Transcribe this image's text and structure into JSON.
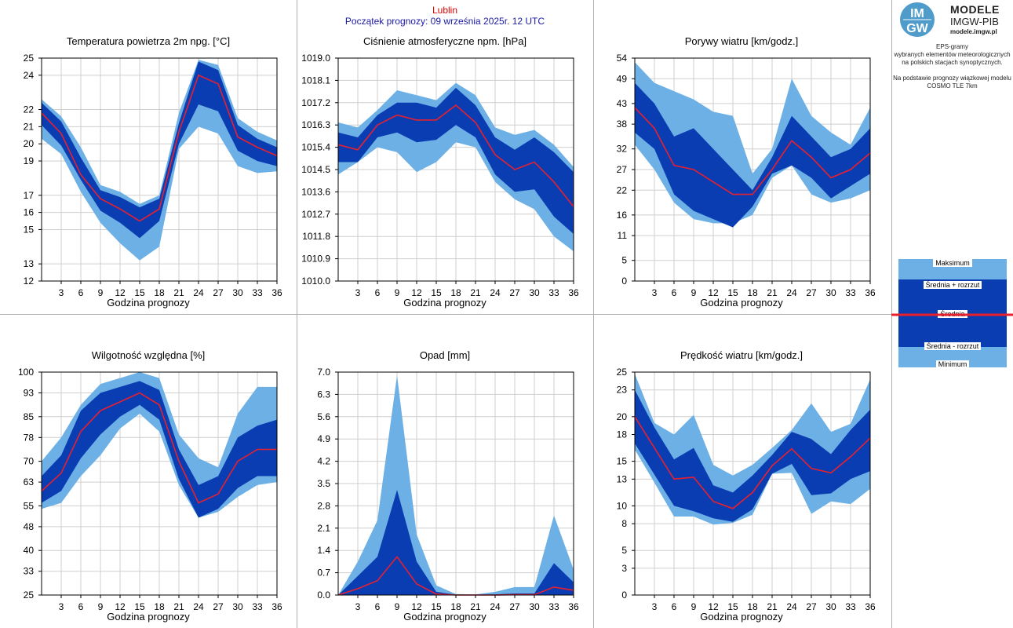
{
  "header": {
    "station": "Lublin",
    "forecast_start": "Początek prognozy: 09 września 2025r. 12 UTC"
  },
  "logo": {
    "mark_text_top": "IM",
    "mark_text_bottom": "GW",
    "line1": "MODELE",
    "line2": "IMGW-PIB",
    "line3": "modele.imgw.pl"
  },
  "info": {
    "line1": "EPS-gramy",
    "line2": "wybranych elementów meteorologicznych",
    "line3": "na polskich stacjach  synoptycznych.",
    "line4": "Na podstawie prognozy wiązkowej modelu",
    "line5": "COSMO TLE 7km"
  },
  "legend": {
    "max": "Maksimum",
    "mean_plus": "Średnia + rozrzut",
    "mean": "Średnia",
    "mean_minus": "Średnia - rozrzut",
    "min": "Minimum"
  },
  "colors": {
    "light_band": "#6cb0e6",
    "dark_band": "#0b3db2",
    "mean_line": "#e8202e",
    "grid": "#cfcfcf"
  },
  "chart_data": [
    {
      "type": "area",
      "title": "Temperatura powietrza 2m npg. [°C]",
      "xlabel": "Godzina prognozy",
      "x": [
        0,
        3,
        6,
        9,
        12,
        15,
        18,
        21,
        24,
        27,
        30,
        33,
        36
      ],
      "x_ticks": [
        3,
        6,
        9,
        12,
        15,
        18,
        21,
        24,
        27,
        30,
        33,
        36
      ],
      "ylim": [
        12,
        25
      ],
      "y_ticks": [
        12,
        13,
        15,
        16,
        17,
        19,
        20,
        21,
        22,
        24,
        25
      ],
      "y_tick_labels": [
        "12",
        "13",
        "15",
        "16",
        "17",
        "19",
        "20",
        "21",
        "22",
        "24",
        "25"
      ],
      "series": [
        {
          "name": "Maksimum",
          "values": [
            22.6,
            21.6,
            19.8,
            17.6,
            17.2,
            16.5,
            17.0,
            21.8,
            24.9,
            24.6,
            21.5,
            20.7,
            20.2
          ]
        },
        {
          "name": "Średnia + rozrzut",
          "values": [
            22.4,
            21.3,
            19.2,
            17.3,
            16.9,
            16.3,
            16.8,
            21.2,
            24.8,
            24.3,
            21.1,
            20.3,
            19.8
          ]
        },
        {
          "name": "Średnia",
          "values": [
            21.8,
            20.6,
            18.2,
            16.8,
            16.2,
            15.5,
            16.2,
            20.7,
            24.0,
            23.5,
            20.4,
            19.8,
            19.3
          ]
        },
        {
          "name": "Średnia - rozrzut",
          "values": [
            21.1,
            19.9,
            17.9,
            16.1,
            15.4,
            14.5,
            15.5,
            20.0,
            22.3,
            21.9,
            19.6,
            19.0,
            18.7
          ]
        },
        {
          "name": "Minimum",
          "values": [
            20.3,
            19.4,
            17.2,
            15.4,
            14.2,
            13.2,
            14.0,
            19.7,
            21.0,
            20.6,
            18.7,
            18.3,
            18.4
          ]
        }
      ]
    },
    {
      "type": "area",
      "title": "Ciśnienie atmosferyczne npm. [hPa]",
      "xlabel": "Godzina prognozy",
      "x": [
        0,
        3,
        6,
        9,
        12,
        15,
        18,
        21,
        24,
        27,
        30,
        33,
        36
      ],
      "x_ticks": [
        3,
        6,
        9,
        12,
        15,
        18,
        21,
        24,
        27,
        30,
        33,
        36
      ],
      "ylim": [
        1010.0,
        1019.0
      ],
      "y_ticks": [
        1010.0,
        1010.9,
        1011.8,
        1012.7,
        1013.6,
        1014.5,
        1015.4,
        1016.3,
        1017.2,
        1018.1,
        1019.0
      ],
      "y_tick_labels": [
        "1010.0",
        "1010.9",
        "1011.8",
        "1012.7",
        "1013.6",
        "1014.5",
        "1015.4",
        "1016.3",
        "1017.2",
        "1018.1",
        "1019.0"
      ],
      "series": [
        {
          "name": "Maksimum",
          "values": [
            1016.4,
            1016.2,
            1016.9,
            1017.7,
            1017.5,
            1017.3,
            1018.0,
            1017.5,
            1016.2,
            1015.9,
            1016.1,
            1015.5,
            1014.6
          ]
        },
        {
          "name": "Średnia + rozrzut",
          "values": [
            1016.0,
            1015.8,
            1016.7,
            1017.2,
            1017.2,
            1017.0,
            1017.8,
            1017.1,
            1015.8,
            1015.3,
            1015.8,
            1015.2,
            1014.4
          ]
        },
        {
          "name": "Średnia",
          "values": [
            1015.5,
            1015.3,
            1016.3,
            1016.7,
            1016.5,
            1016.5,
            1017.1,
            1016.4,
            1015.1,
            1014.5,
            1014.8,
            1014.0,
            1013.0
          ]
        },
        {
          "name": "Średnia - rozrzut",
          "values": [
            1014.8,
            1014.8,
            1015.8,
            1016.0,
            1015.6,
            1015.7,
            1016.3,
            1015.8,
            1014.3,
            1013.6,
            1013.7,
            1012.6,
            1011.9
          ]
        },
        {
          "name": "Minimum",
          "values": [
            1014.3,
            1014.8,
            1015.4,
            1015.2,
            1014.4,
            1014.8,
            1015.6,
            1015.4,
            1014.0,
            1013.3,
            1012.9,
            1011.8,
            1011.2
          ]
        }
      ]
    },
    {
      "type": "area",
      "title": "Porywy wiatru [km/godz.]",
      "xlabel": "Godzina prognozy",
      "x": [
        0,
        3,
        6,
        9,
        12,
        15,
        18,
        21,
        24,
        27,
        30,
        33,
        36
      ],
      "x_ticks": [
        3,
        6,
        9,
        12,
        15,
        18,
        21,
        24,
        27,
        30,
        33,
        36
      ],
      "ylim": [
        0,
        54
      ],
      "y_ticks": [
        0,
        5,
        11,
        16,
        22,
        27,
        32,
        38,
        43,
        49,
        54
      ],
      "y_tick_labels": [
        "0",
        "5",
        "11",
        "16",
        "22",
        "27",
        "32",
        "38",
        "43",
        "49",
        "54"
      ],
      "series": [
        {
          "name": "Maksimum",
          "values": [
            53,
            48,
            46,
            44,
            41,
            40,
            26,
            32,
            49,
            40,
            36,
            33,
            42
          ]
        },
        {
          "name": "Średnia + rozrzut",
          "values": [
            48,
            43,
            35,
            37,
            32,
            27,
            22,
            30,
            40,
            35,
            30,
            32,
            37
          ]
        },
        {
          "name": "Średnia",
          "values": [
            42,
            37,
            28,
            27,
            24,
            21,
            21,
            27,
            34,
            30,
            25,
            27,
            31
          ]
        },
        {
          "name": "Średnia - rozrzut",
          "values": [
            36,
            32,
            21,
            17,
            15,
            13,
            18,
            26,
            28,
            25,
            20,
            23,
            26
          ]
        },
        {
          "name": "Minimum",
          "values": [
            33,
            27,
            19,
            15,
            14,
            14,
            16,
            25,
            28,
            21,
            19,
            20,
            22
          ]
        }
      ]
    },
    {
      "type": "area",
      "title": "Wilgotność względna [%]",
      "xlabel": "Godzina prognozy",
      "x": [
        0,
        3,
        6,
        9,
        12,
        15,
        18,
        21,
        24,
        27,
        30,
        33,
        36
      ],
      "x_ticks": [
        3,
        6,
        9,
        12,
        15,
        18,
        21,
        24,
        27,
        30,
        33,
        36
      ],
      "ylim": [
        25,
        100
      ],
      "y_ticks": [
        25,
        33,
        40,
        48,
        55,
        63,
        70,
        78,
        85,
        93,
        100
      ],
      "y_tick_labels": [
        "25",
        "33",
        "40",
        "48",
        "55",
        "63",
        "70",
        "78",
        "85",
        "93",
        "100"
      ],
      "series": [
        {
          "name": "Maksimum",
          "values": [
            70,
            78,
            89,
            96,
            98,
            100,
            98,
            79,
            71,
            68,
            86,
            95,
            95
          ]
        },
        {
          "name": "Średnia + rozrzut",
          "values": [
            65,
            72,
            87,
            93,
            95,
            97,
            94,
            74,
            62,
            65,
            78,
            82,
            84
          ]
        },
        {
          "name": "Średnia",
          "values": [
            60,
            66,
            80,
            87,
            90,
            93,
            89,
            70,
            56,
            59,
            70,
            74,
            74
          ]
        },
        {
          "name": "Średnia - rozrzut",
          "values": [
            56,
            60,
            71,
            79,
            85,
            89,
            84,
            64,
            51,
            54,
            61,
            65,
            65
          ]
        },
        {
          "name": "Minimum",
          "values": [
            54,
            56,
            65,
            72,
            81,
            86,
            80,
            62,
            51,
            53,
            58,
            62,
            63
          ]
        }
      ]
    },
    {
      "type": "area",
      "title": "Opad [mm]",
      "xlabel": "Godzina prognozy",
      "x": [
        0,
        3,
        6,
        9,
        12,
        15,
        18,
        21,
        24,
        27,
        30,
        33,
        36
      ],
      "x_ticks": [
        3,
        6,
        9,
        12,
        15,
        18,
        21,
        24,
        27,
        30,
        33,
        36
      ],
      "ylim": [
        0,
        7.0
      ],
      "y_ticks": [
        0.0,
        0.7,
        1.4,
        2.1,
        2.8,
        3.5,
        4.2,
        4.9,
        5.6,
        6.3,
        7.0
      ],
      "y_tick_labels": [
        "0.0",
        "0.7",
        "1.4",
        "2.1",
        "2.8",
        "3.5",
        "4.2",
        "4.9",
        "5.6",
        "6.3",
        "7.0"
      ],
      "series": [
        {
          "name": "Maksimum",
          "values": [
            0,
            1.05,
            2.35,
            6.9,
            1.9,
            0.3,
            0.03,
            0.02,
            0.1,
            0.25,
            0.25,
            2.5,
            0.8
          ]
        },
        {
          "name": "Średnia + rozrzut",
          "values": [
            0,
            0.6,
            1.2,
            3.3,
            1.05,
            0.1,
            0.01,
            0.01,
            0.02,
            0.05,
            0.05,
            1.0,
            0.4
          ]
        },
        {
          "name": "Średnia",
          "values": [
            0,
            0.2,
            0.45,
            1.2,
            0.35,
            0.03,
            0,
            0,
            0,
            0.01,
            0.01,
            0.25,
            0.15
          ]
        },
        {
          "name": "Średnia - rozrzut",
          "values": [
            0,
            0,
            0,
            0,
            0,
            0,
            0,
            0,
            0,
            0,
            0,
            0,
            0
          ]
        },
        {
          "name": "Minimum",
          "values": [
            0,
            0,
            0,
            0,
            0,
            0,
            0,
            0,
            0,
            0,
            0,
            0,
            0
          ]
        }
      ]
    },
    {
      "type": "area",
      "title": "Prędkość wiatru [km/godz.]",
      "xlabel": "Godzina prognozy",
      "x": [
        0,
        3,
        6,
        9,
        12,
        15,
        18,
        21,
        24,
        27,
        30,
        33,
        36
      ],
      "x_ticks": [
        3,
        6,
        9,
        12,
        15,
        18,
        21,
        24,
        27,
        30,
        33,
        36
      ],
      "ylim": [
        0,
        25
      ],
      "y_ticks": [
        0,
        3,
        5,
        8,
        10,
        13,
        15,
        18,
        20,
        23,
        25
      ],
      "y_tick_labels": [
        "0",
        "3",
        "5",
        "8",
        "10",
        "13",
        "15",
        "18",
        "20",
        "23",
        "25"
      ],
      "series": [
        {
          "name": "Maksimum",
          "values": [
            24.8,
            19.3,
            18.0,
            20.2,
            14.6,
            13.4,
            14.6,
            16.5,
            18.5,
            21.5,
            18.3,
            19.2,
            24.2
          ]
        },
        {
          "name": "Średnia + rozrzut",
          "values": [
            23.0,
            18.8,
            15.2,
            16.5,
            12.3,
            11.5,
            13.4,
            15.7,
            18.3,
            17.5,
            15.8,
            18.5,
            20.8
          ]
        },
        {
          "name": "Średnia",
          "values": [
            20.0,
            16.5,
            13.0,
            13.2,
            10.5,
            9.7,
            11.5,
            14.5,
            16.4,
            14.2,
            13.7,
            15.5,
            17.6
          ]
        },
        {
          "name": "Średnia - rozrzut",
          "values": [
            17.0,
            13.5,
            10.0,
            9.4,
            8.6,
            8.2,
            9.6,
            13.6,
            14.7,
            11.2,
            11.4,
            13.0,
            13.9
          ]
        },
        {
          "name": "Minimum",
          "values": [
            16.3,
            12.6,
            8.8,
            8.8,
            7.9,
            8.1,
            9.0,
            13.6,
            13.7,
            9.1,
            10.5,
            10.2,
            11.9
          ]
        }
      ]
    }
  ]
}
